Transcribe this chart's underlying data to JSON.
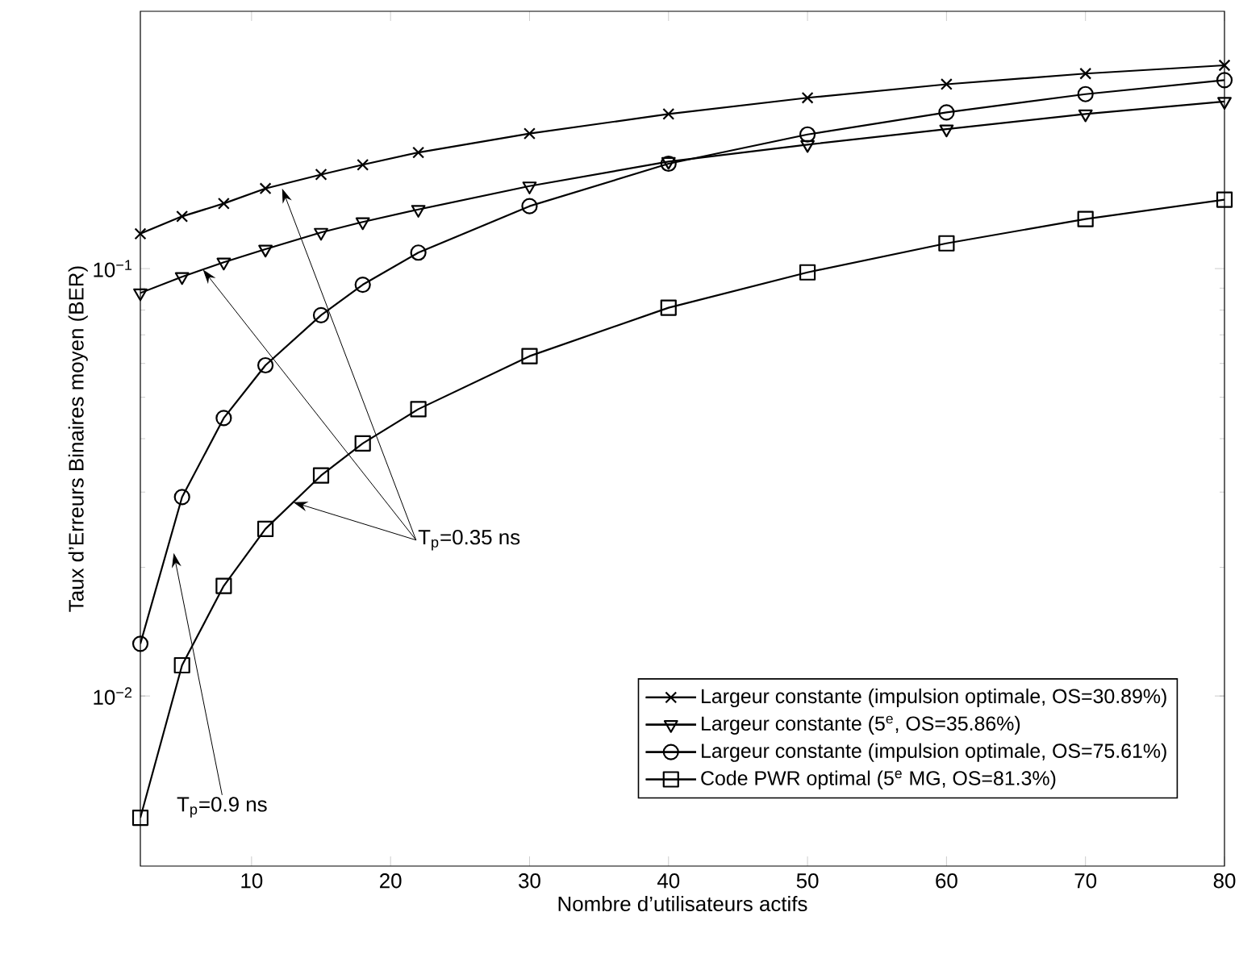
{
  "chart_data": {
    "type": "line",
    "xlabel": "Nombre d’utilisateurs actifs",
    "ylabel": "Taux d’Erreurs Binaires moyen (BER)",
    "x": [
      2,
      5,
      8,
      11,
      15,
      18,
      22,
      30,
      40,
      50,
      60,
      70,
      80
    ],
    "series": [
      {
        "name": "Largeur constante (impulsion optimale, OS=30.89%)",
        "color": "#000000",
        "marker": "cross",
        "values": [
          0.1207,
          0.1325,
          0.142,
          0.154,
          0.166,
          0.175,
          0.187,
          0.207,
          0.23,
          0.251,
          0.27,
          0.286,
          0.299
        ]
      },
      {
        "name": "Largeur constante (5$^{e}$, OS=35.86%)",
        "color": "#000000",
        "marker": "triangle",
        "values": [
          0.0877,
          0.0957,
          0.1035,
          0.111,
          0.1215,
          0.1286,
          0.1375,
          0.156,
          0.178,
          0.195,
          0.212,
          0.23,
          0.246
        ]
      },
      {
        "name": "Largeur constante (impulsion optimale, OS=75.61%)",
        "color": "#000000",
        "marker": "circle",
        "values": [
          0.01325,
          0.0292,
          0.0447,
          0.0594,
          0.0778,
          0.0917,
          0.109,
          0.14,
          0.176,
          0.206,
          0.232,
          0.256,
          0.276
        ]
      },
      {
        "name": "Code PWR optimal (5$^{e}$ MG, OS=81.3%)",
        "color": "#000000",
        "marker": "square",
        "values": [
          0.00519,
          0.0118,
          0.0181,
          0.0246,
          0.0328,
          0.039,
          0.0469,
          0.0624,
          0.081,
          0.098,
          0.1146,
          0.1306,
          0.145
        ]
      }
    ],
    "xlim": [
      2,
      80
    ],
    "ylim": [
      0.004,
      0.4
    ],
    "log": "y",
    "xticks": [
      10,
      20,
      30,
      40,
      50,
      60,
      70,
      80
    ],
    "yticks": [
      {
        "value": 0.01,
        "label": "10$^{−2}$"
      },
      {
        "value": 0.1,
        "label": "10$^{−1}$"
      }
    ],
    "grid": false,
    "legend": "bottom right",
    "line_style": "solid",
    "annotations": [
      {
        "text": "T$_{p}$=0.35 ns",
        "x": 12.2,
        "y": 0.154
      },
      {
        "text": "T$_{p}$=0.9 ns",
        "x": 4.4,
        "y": 0.0216
      }
    ]
  }
}
